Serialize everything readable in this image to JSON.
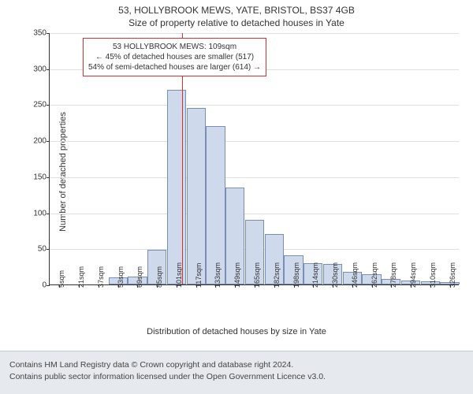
{
  "title_line1": "53, HOLLYBROOK MEWS, YATE, BRISTOL, BS37 4GB",
  "title_line2": "Size of property relative to detached houses in Yate",
  "y_axis_label": "Number of detached properties",
  "x_axis_label": "Distribution of detached houses by size in Yate",
  "chart": {
    "type": "histogram",
    "background_color": "#ffffff",
    "grid_color": "#e0e0e0",
    "axis_color": "#333333",
    "bar_fill": "#cfd9ec",
    "bar_border": "#7a8db5",
    "vline_color": "#d93030",
    "annotation_border": "#d93030",
    "ylim": [
      0,
      350
    ],
    "yticks": [
      0,
      50,
      100,
      150,
      200,
      250,
      300,
      350
    ],
    "xticks": [
      "5sqm",
      "21sqm",
      "37sqm",
      "53sqm",
      "69sqm",
      "85sqm",
      "101sqm",
      "117sqm",
      "133sqm",
      "149sqm",
      "165sqm",
      "182sqm",
      "198sqm",
      "214sqm",
      "230sqm",
      "246sqm",
      "262sqm",
      "278sqm",
      "294sqm",
      "310sqm",
      "326sqm"
    ],
    "bar_values": [
      0,
      0,
      0,
      10,
      11,
      48,
      270,
      245,
      220,
      135,
      90,
      70,
      40,
      30,
      28,
      18,
      14,
      8,
      6,
      4,
      3
    ],
    "vline_x_value": 109,
    "x_min": 5,
    "x_max": 326
  },
  "annotation": {
    "line1": "53 HOLLYBROOK MEWS: 109sqm",
    "line2": "← 45% of detached houses are smaller (517)",
    "line3": "54% of semi-detached houses are larger (614) →"
  },
  "footer": {
    "line1": "Contains HM Land Registry data © Crown copyright and database right 2024.",
    "line2": "Contains public sector information licensed under the Open Government Licence v3.0.",
    "bg_color": "#e6e9ed"
  }
}
